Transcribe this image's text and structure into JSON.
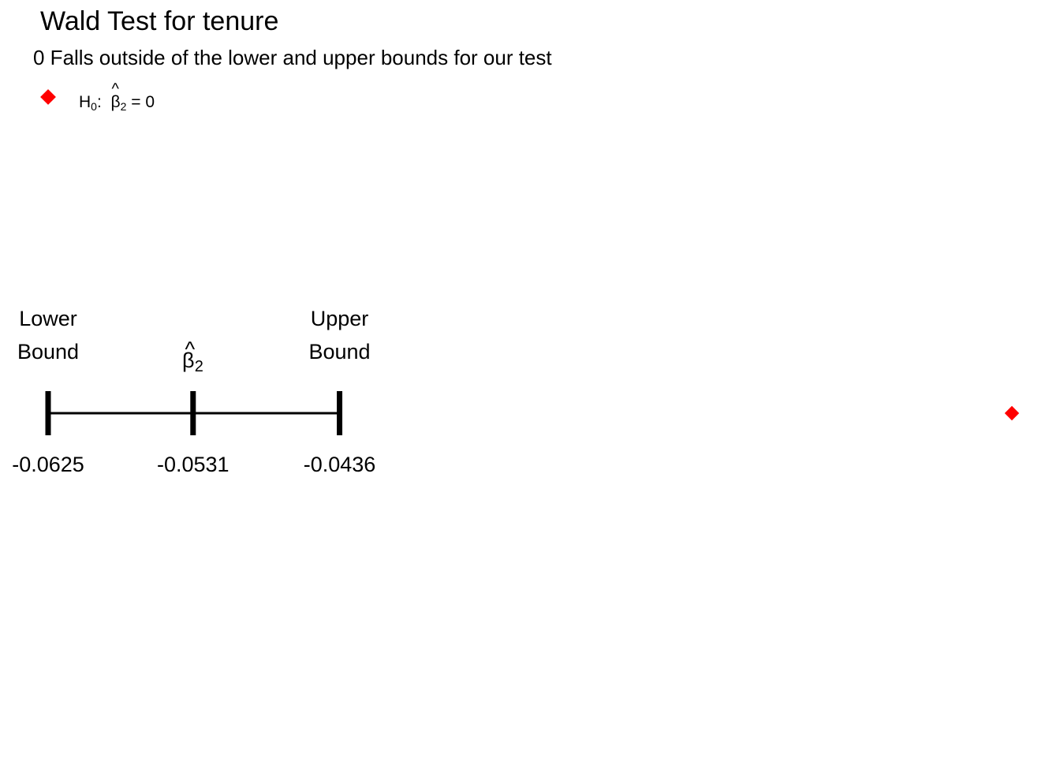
{
  "chart_data": {
    "type": "scatter",
    "title": "Wald Test for tenure",
    "subtitle": "0 Falls outside of the lower and upper bounds for our test",
    "legend": {
      "placement": "top-left",
      "h_symbol": "H",
      "h_sub": "0",
      "beta_symbol": "β",
      "beta_sub": "2",
      "equals_text": "= 0",
      "marker_color": "#ff0000"
    },
    "interval": {
      "lower": -0.0625,
      "estimate": -0.0531,
      "upper": -0.0436,
      "lower_label": "-0.0625",
      "estimate_label": "-0.0531",
      "upper_label": "-0.0436",
      "lower_name_line1": "Lower",
      "lower_name_line2": "Bound",
      "upper_name_line1": "Upper",
      "upper_name_line2": "Bound",
      "estimate_symbol": "β",
      "estimate_sub": "2"
    },
    "null_value": 0,
    "xlim": [
      -0.0625,
      0.0
    ],
    "grid": false,
    "colors": {
      "interval": "#000000",
      "null_marker": "#ff0000"
    }
  }
}
